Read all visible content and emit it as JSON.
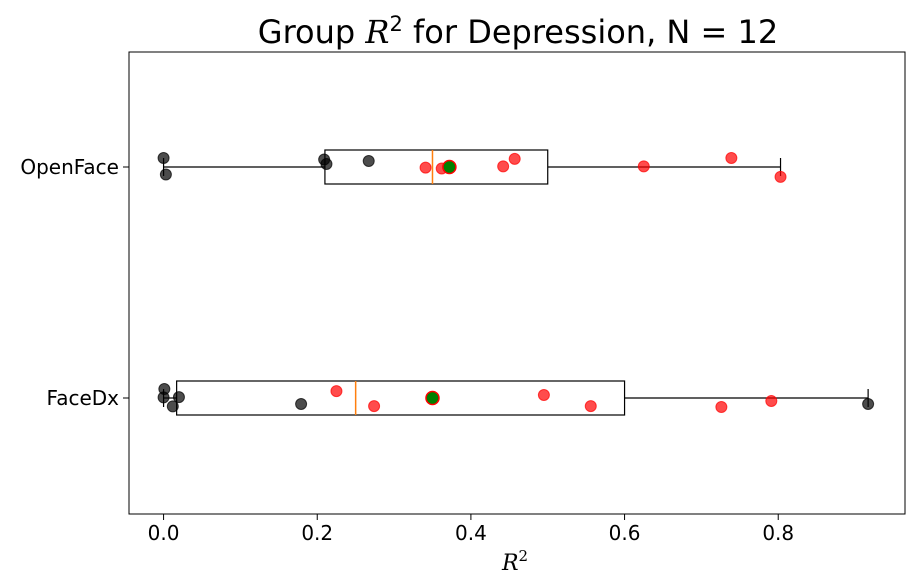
{
  "chart_data": {
    "type": "boxplot",
    "title": "Group R² for Depression, N = 12",
    "title_parts": {
      "prefix": "Group ",
      "var": "R",
      "sup": "2",
      "suffix": " for Depression, N = 12"
    },
    "xlabel": {
      "var": "R",
      "sup": "2"
    },
    "orientation": "horizontal",
    "xlim": [
      -0.045,
      0.965
    ],
    "x_ticks": [
      0.0,
      0.2,
      0.4,
      0.6,
      0.8
    ],
    "x_tick_labels": [
      "0.0",
      "0.2",
      "0.4",
      "0.6",
      "0.8"
    ],
    "categories": [
      "OpenFace",
      "FaceDx"
    ],
    "boxes": [
      {
        "name": "OpenFace",
        "whisker_low": 0.0,
        "q1": 0.21,
        "median": 0.35,
        "q3": 0.5,
        "whisker_high": 0.803,
        "mean": 0.372,
        "points": [
          {
            "x": 0.0,
            "jitter": 0.3,
            "group": "black"
          },
          {
            "x": 0.003,
            "jitter": -0.25,
            "group": "black"
          },
          {
            "x": 0.209,
            "jitter": 0.25,
            "group": "black"
          },
          {
            "x": 0.212,
            "jitter": 0.1,
            "group": "black"
          },
          {
            "x": 0.267,
            "jitter": 0.2,
            "group": "black"
          },
          {
            "x": 0.341,
            "jitter": -0.02,
            "group": "red"
          },
          {
            "x": 0.362,
            "jitter": -0.05,
            "group": "red"
          },
          {
            "x": 0.442,
            "jitter": 0.02,
            "group": "red"
          },
          {
            "x": 0.457,
            "jitter": 0.27,
            "group": "red"
          },
          {
            "x": 0.625,
            "jitter": 0.02,
            "group": "red"
          },
          {
            "x": 0.739,
            "jitter": 0.3,
            "group": "red"
          },
          {
            "x": 0.803,
            "jitter": -0.33,
            "group": "red"
          }
        ]
      },
      {
        "name": "FaceDx",
        "whisker_low": 0.0,
        "q1": 0.017,
        "median": 0.25,
        "q3": 0.6,
        "whisker_high": 0.917,
        "mean": 0.35,
        "points": [
          {
            "x": 0.001,
            "jitter": 0.3,
            "group": "black"
          },
          {
            "x": 0.0,
            "jitter": 0.02,
            "group": "black"
          },
          {
            "x": 0.012,
            "jitter": -0.28,
            "group": "black"
          },
          {
            "x": 0.02,
            "jitter": 0.03,
            "group": "black"
          },
          {
            "x": 0.179,
            "jitter": -0.2,
            "group": "black"
          },
          {
            "x": 0.225,
            "jitter": 0.23,
            "group": "red"
          },
          {
            "x": 0.274,
            "jitter": -0.27,
            "group": "red"
          },
          {
            "x": 0.495,
            "jitter": 0.1,
            "group": "red"
          },
          {
            "x": 0.556,
            "jitter": -0.27,
            "group": "red"
          },
          {
            "x": 0.726,
            "jitter": -0.3,
            "group": "red"
          },
          {
            "x": 0.791,
            "jitter": -0.1,
            "group": "red"
          },
          {
            "x": 0.917,
            "jitter": -0.2,
            "group": "black"
          }
        ]
      }
    ],
    "colors": {
      "box": "#000000",
      "median": "#ff7f0e",
      "mean_fill": "#008000",
      "mean_edge": "#ff0000",
      "red_points": "#ff0000",
      "black_points": "#000000"
    },
    "grid": false,
    "legend": "none"
  }
}
